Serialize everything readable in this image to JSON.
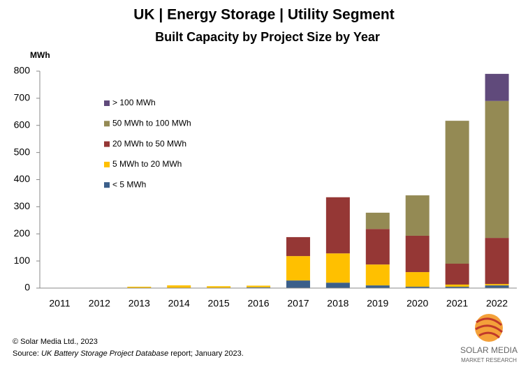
{
  "chart_data": {
    "type": "stacked_bar",
    "title": "UK | Energy Storage | Utility Segment",
    "subtitle": "Built Capacity by Project Size by Year",
    "y_label": "MWh",
    "categories": [
      "2011",
      "2012",
      "2013",
      "2014",
      "2015",
      "2016",
      "2017",
      "2018",
      "2019",
      "2020",
      "2021",
      "2022"
    ],
    "series": [
      {
        "name": "< 5 MWh",
        "color": "#3b5f8a",
        "values": [
          0,
          0,
          0,
          0,
          0,
          3,
          28,
          20,
          10,
          5,
          5,
          10
        ]
      },
      {
        "name": "5 MWh to 20 MWh",
        "color": "#ffc000",
        "values": [
          0,
          0,
          5,
          10,
          7,
          6,
          90,
          108,
          77,
          54,
          8,
          5
        ]
      },
      {
        "name": "20 MWh to 50 MWh",
        "color": "#953735",
        "values": [
          0,
          0,
          0,
          0,
          0,
          0,
          70,
          207,
          131,
          134,
          77,
          170
        ]
      },
      {
        "name": "50 MWh to 100 MWh",
        "color": "#948a54",
        "values": [
          0,
          0,
          0,
          0,
          0,
          0,
          0,
          0,
          60,
          149,
          527,
          505
        ]
      },
      {
        "name": "> 100 MWh",
        "color": "#604a7b",
        "values": [
          0,
          0,
          0,
          0,
          0,
          0,
          0,
          0,
          0,
          0,
          0,
          100
        ]
      }
    ],
    "ylim": [
      0,
      800
    ],
    "yticks": [
      0,
      100,
      200,
      300,
      400,
      500,
      600,
      700,
      800
    ],
    "copyright": "© Solar Media Ltd., 2023",
    "source": {
      "prefix": "Source:",
      "title": "UK Battery Storage Project Database",
      "suffix": "report; January 2023."
    },
    "logo": {
      "name": "SOLAR MEDIA",
      "tagline": "MARKET RESEARCH"
    }
  }
}
